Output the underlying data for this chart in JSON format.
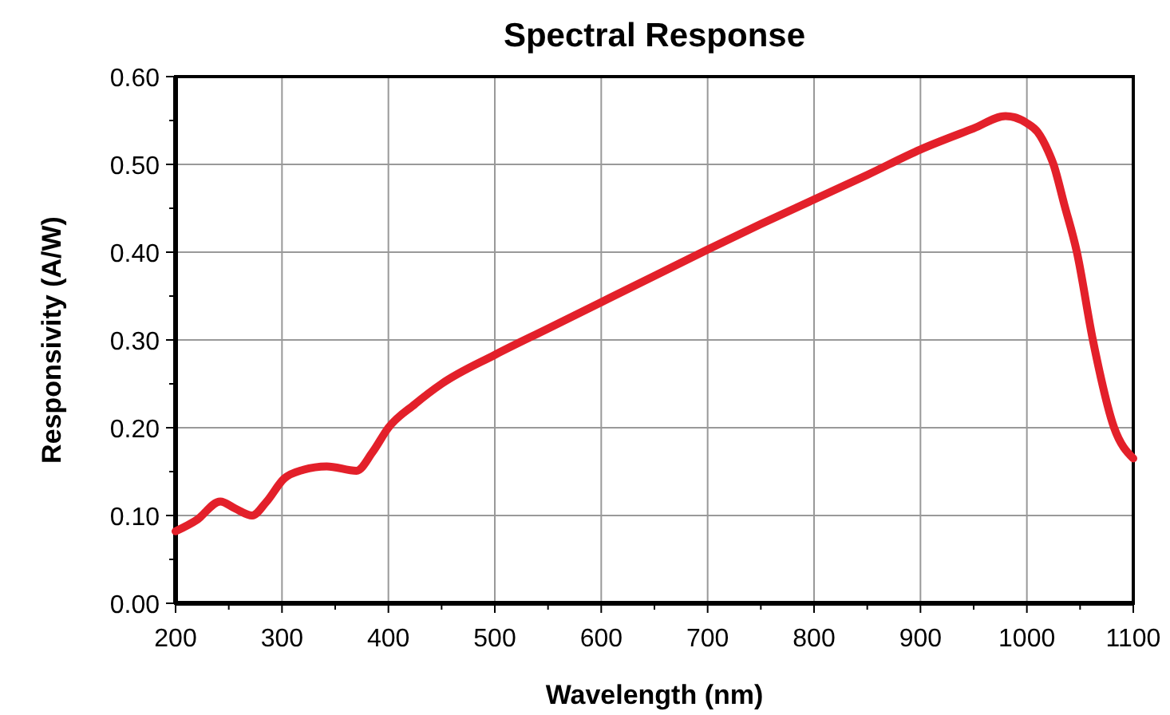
{
  "chart_data": {
    "type": "line",
    "title": "Spectral Response",
    "xlabel": "Wavelength (nm)",
    "ylabel": "Responsivity (A/W)",
    "x": [
      200,
      220,
      242,
      256,
      272,
      285,
      302,
      320,
      342,
      370,
      385,
      400,
      425,
      450,
      500,
      550,
      600,
      650,
      700,
      750,
      800,
      850,
      900,
      950,
      980,
      1000,
      1010,
      1020,
      1025,
      1035,
      1047,
      1062,
      1082,
      1100
    ],
    "series": [
      {
        "color": "#e3202a",
        "values": [
          0.082,
          0.095,
          0.116,
          0.108,
          0.1,
          0.115,
          0.142,
          0.152,
          0.156,
          0.151,
          0.172,
          0.2,
          0.227,
          0.25,
          0.283,
          0.313,
          0.343,
          0.373,
          0.403,
          0.432,
          0.46,
          0.488,
          0.517,
          0.541,
          0.555,
          0.547,
          0.537,
          0.515,
          0.5,
          0.455,
          0.4,
          0.3,
          0.2,
          0.165
        ]
      }
    ],
    "xlim": [
      200,
      1100
    ],
    "ylim": [
      0,
      0.6
    ],
    "xticks": [
      200,
      {
        "value": 250,
        "label": null
      },
      300,
      {
        "value": 350,
        "label": null
      },
      400,
      {
        "value": 450,
        "label": null
      },
      500,
      {
        "value": 550,
        "label": null
      },
      600,
      {
        "value": 650,
        "label": null
      },
      700,
      {
        "value": 750,
        "label": null
      },
      800,
      {
        "value": 850,
        "label": null
      },
      900,
      {
        "value": 950,
        "label": null
      },
      1000,
      {
        "value": 1050,
        "label": null
      },
      1100
    ],
    "yticks": [
      {
        "value": 0,
        "label": "0.00"
      },
      {
        "value": 0.05,
        "label": null
      },
      {
        "value": 0.1,
        "label": "0.10"
      },
      {
        "value": 0.15,
        "label": null
      },
      {
        "value": 0.2,
        "label": "0.20"
      },
      {
        "value": 0.25,
        "label": null
      },
      {
        "value": 0.3,
        "label": "0.30"
      },
      {
        "value": 0.35,
        "label": null
      },
      {
        "value": 0.4,
        "label": "0.40"
      },
      {
        "value": 0.45,
        "label": null
      },
      {
        "value": 0.5,
        "label": "0.50"
      },
      {
        "value": 0.55,
        "label": null
      },
      {
        "value": 0.6,
        "label": "0.60"
      }
    ],
    "grid": true,
    "marker": "none",
    "line_style": "solid"
  }
}
